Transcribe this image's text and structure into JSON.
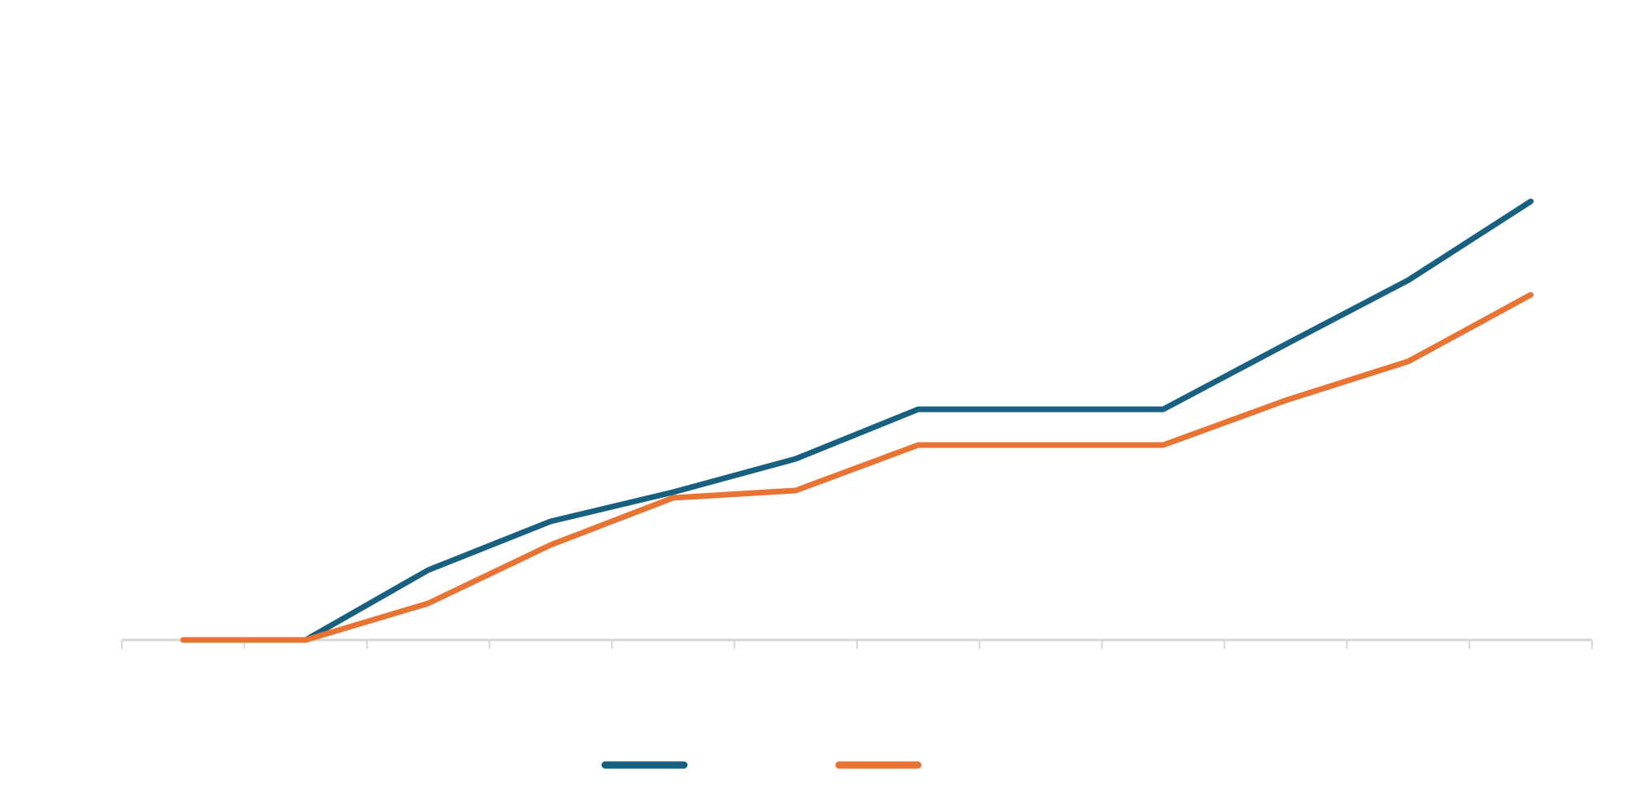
{
  "chart_data": {
    "type": "line",
    "x": [
      0,
      1,
      2,
      3,
      4,
      5,
      6,
      7,
      8,
      9,
      10,
      11
    ],
    "series": [
      {
        "color": "#17607f",
        "values": [
          null,
          0,
          8.6,
          14.6,
          18.2,
          22.3,
          28.4,
          28.4,
          28.4,
          36.4,
          44.3,
          54.0
        ]
      },
      {
        "color": "#e87333",
        "values": [
          0,
          0,
          4.5,
          11.7,
          17.5,
          18.4,
          24.0,
          24.0,
          24.0,
          29.5,
          34.3,
          42.5
        ]
      }
    ],
    "ylim": [
      0,
      58.8
    ],
    "grid": false,
    "axis_color": "#d6d6d6",
    "legend": "bottom-center"
  }
}
